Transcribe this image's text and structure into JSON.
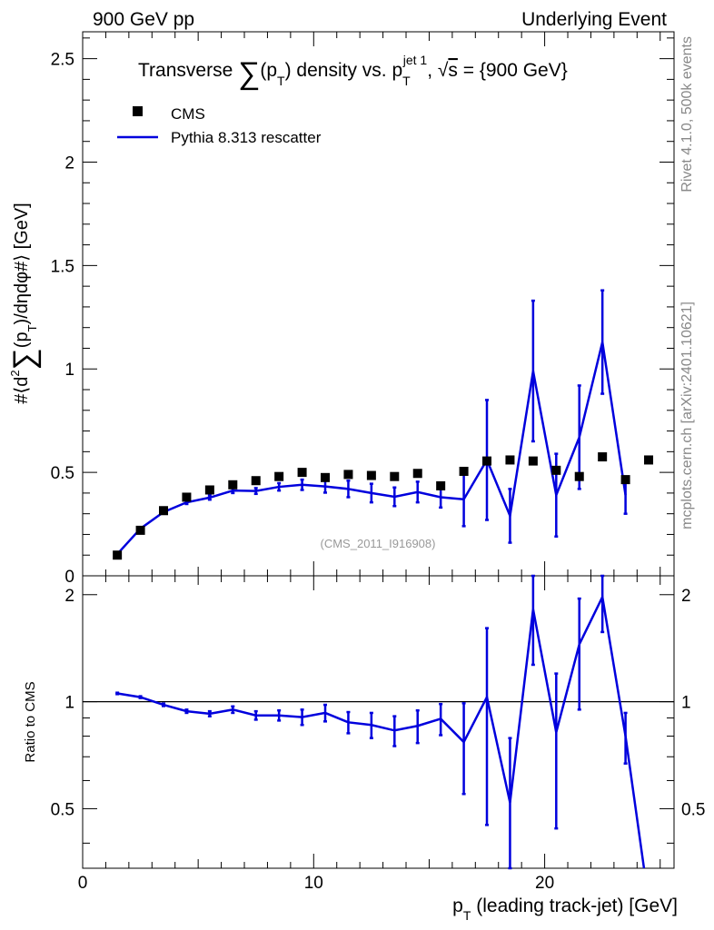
{
  "header": {
    "left": "900 GeV pp",
    "right": "Underlying Event"
  },
  "side_labels": {
    "rivet": "Rivet 4.1.0,  500k events",
    "mcplots": "mcplots.cern.ch [arXiv:2401.10621]"
  },
  "watermark": "(CMS_2011_I916908)",
  "colors": {
    "data": "#000000",
    "mc": "#0000dd",
    "reference_line": "#000000"
  },
  "chart_data": [
    {
      "type": "scatter",
      "panel": "main",
      "title": "Transverse ∑(pT) density vs. pT jet 1, √s = {900 GeV}",
      "title_parts": {
        "t1": "Transverse ",
        "sum": "∑",
        "t2": "(p",
        "sub_T": "T",
        "t3": ") density vs. p",
        "sub_T2": "T",
        "sup_jet": "jet 1",
        "t4": ", ",
        "sqrt": "√",
        "s": "s",
        "t5": " = {900 GeV}"
      },
      "ylabel": "#⟨d² ∑(pT)/dηdφ#⟩ [GeV]",
      "ylabel_parts": {
        "a": "#⟨d",
        "sq": "2",
        "sum": "∑",
        "b": "(p",
        "sub": "T",
        "c": ")/dηdφ#⟩ [GeV]"
      },
      "xlim": [
        0,
        25.6
      ],
      "ylim": [
        0,
        2.63
      ],
      "yticks": [
        {
          "v": 0,
          "label": "0"
        },
        {
          "v": 0.5,
          "label": "0.5"
        },
        {
          "v": 1,
          "label": "1"
        },
        {
          "v": 1.5,
          "label": "1.5"
        },
        {
          "v": 2,
          "label": "2"
        },
        {
          "v": 2.5,
          "label": "2.5"
        }
      ],
      "legend": {
        "position": "top-left",
        "entries": [
          {
            "label": "CMS",
            "marker": "square"
          },
          {
            "label": "Pythia 8.313 rescatter",
            "marker": "line"
          }
        ]
      },
      "series": [
        {
          "name": "CMS",
          "x": [
            1.5,
            2.5,
            3.5,
            4.5,
            5.5,
            6.5,
            7.5,
            8.5,
            9.5,
            10.5,
            11.5,
            12.5,
            13.5,
            14.5,
            15.5,
            16.5,
            17.5,
            18.5,
            19.5,
            20.5,
            21.5,
            22.5,
            23.5,
            24.5
          ],
          "y": [
            0.1,
            0.22,
            0.315,
            0.38,
            0.415,
            0.44,
            0.46,
            0.48,
            0.5,
            0.475,
            0.49,
            0.485,
            0.48,
            0.495,
            0.435,
            0.505,
            0.555,
            0.56,
            0.555,
            0.51,
            0.48,
            0.575,
            0.465,
            0.56
          ]
        },
        {
          "name": "Pythia 8.313 rescatter",
          "x": [
            1.5,
            2.5,
            3.5,
            4.5,
            5.5,
            6.5,
            7.5,
            8.5,
            9.5,
            10.5,
            11.5,
            12.5,
            13.5,
            14.5,
            15.5,
            16.5,
            17.5,
            18.5,
            19.5,
            20.5,
            21.5,
            22.5,
            23.5
          ],
          "y": [
            0.105,
            0.228,
            0.308,
            0.355,
            0.378,
            0.412,
            0.41,
            0.43,
            0.44,
            0.432,
            0.42,
            0.4,
            0.382,
            0.405,
            0.38,
            0.37,
            0.56,
            0.29,
            0.99,
            0.39,
            0.67,
            1.13,
            0.39
          ],
          "err": [
            0.003,
            0.005,
            0.006,
            0.008,
            0.01,
            0.012,
            0.014,
            0.018,
            0.025,
            0.03,
            0.04,
            0.045,
            0.045,
            0.05,
            0.05,
            0.13,
            0.29,
            0.13,
            0.34,
            0.2,
            0.25,
            0.25,
            0.09
          ]
        }
      ]
    },
    {
      "type": "line",
      "panel": "ratio",
      "ylabel": "Ratio to CMS",
      "xlabel": "pT (leading track-jet) [GeV]",
      "xlabel_parts": {
        "p": "p",
        "sub": "T",
        "rest": " (leading track-jet) [GeV]"
      },
      "xlim": [
        0,
        25.6
      ],
      "ylim": [
        0.34,
        2.26
      ],
      "xticks": [
        {
          "v": 0,
          "label": "0"
        },
        {
          "v": 10,
          "label": "10"
        },
        {
          "v": 20,
          "label": "20"
        }
      ],
      "yticks": [
        {
          "v": 0.5,
          "label": "0.5"
        },
        {
          "v": 1,
          "label": "1"
        },
        {
          "v": 2,
          "label": "2"
        }
      ],
      "reference_line": 1,
      "series": [
        {
          "name": "Pythia 8.313 rescatter / CMS",
          "x": [
            1.5,
            2.5,
            3.5,
            4.5,
            5.5,
            6.5,
            7.5,
            8.5,
            9.5,
            10.5,
            11.5,
            12.5,
            13.5,
            14.5,
            15.5,
            16.5,
            17.5,
            18.5,
            19.5,
            20.5,
            21.5,
            22.5,
            23.5,
            24.3
          ],
          "y": [
            1.055,
            1.03,
            0.98,
            0.94,
            0.925,
            0.95,
            0.915,
            0.915,
            0.905,
            0.93,
            0.875,
            0.86,
            0.83,
            0.855,
            0.895,
            0.77,
            1.03,
            0.52,
            1.82,
            0.82,
            1.45,
            1.97,
            0.8,
            0.34
          ],
          "err": [
            0.005,
            0.006,
            0.008,
            0.01,
            0.015,
            0.02,
            0.025,
            0.03,
            0.045,
            0.05,
            0.06,
            0.07,
            0.08,
            0.09,
            0.09,
            0.22,
            0.58,
            0.27,
            0.55,
            0.38,
            0.5,
            0.4,
            0.13,
            0
          ]
        }
      ]
    }
  ]
}
